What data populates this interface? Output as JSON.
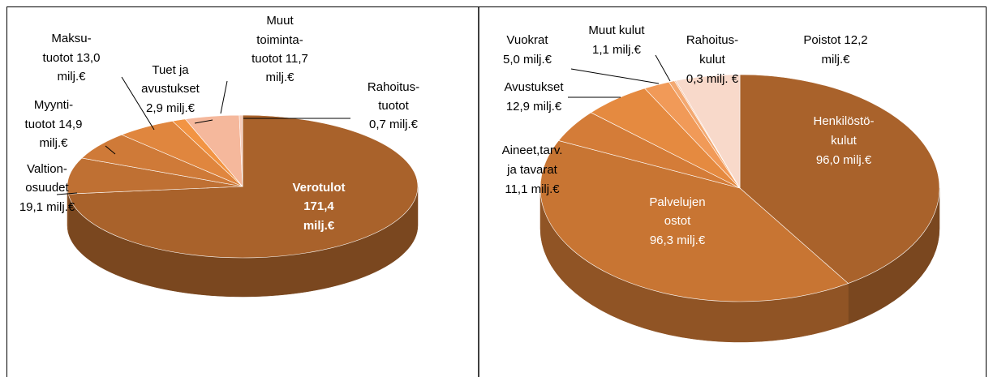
{
  "chart_data": [
    {
      "type": "pie",
      "values": [
        171.4,
        19.1,
        14.9,
        13.0,
        2.9,
        11.7,
        0.7
      ],
      "value_labels": [
        [
          "Verotulot",
          "171,4",
          "milj.€"
        ],
        [
          "Valtion-",
          "osuudet",
          "19,1 milj.€"
        ],
        [
          "Myynti-",
          "tuotot 14,9",
          "milj.€"
        ],
        [
          "Maksu-",
          "tuotot 13,0",
          "milj.€"
        ],
        [
          "Tuet ja",
          "avustukset",
          "2,9 milj.€"
        ],
        [
          "Muut",
          "toiminta-",
          "tuotot 11,7",
          "milj.€"
        ],
        [
          "Rahoitus-",
          "tuotot",
          "0,7 milj.€"
        ]
      ],
      "colors": [
        "#a9622b",
        "#bf7033",
        "#cf7a38",
        "#e0863e",
        "#f29443",
        "#f5b89c",
        "#f7cbb8"
      ]
    },
    {
      "type": "pie",
      "values": [
        96.0,
        96.3,
        11.1,
        12.9,
        5.0,
        1.1,
        0.3,
        12.2
      ],
      "value_labels": [
        [
          "Henkilöstö-",
          "kulut",
          "96,0 milj.€"
        ],
        [
          "Palvelujen",
          "ostot",
          "96,3 milj.€"
        ],
        [
          "Aineet,tarv.",
          "ja tavarat",
          "11,1 milj.€"
        ],
        [
          "Avustukset",
          "12,9 milj.€"
        ],
        [
          "Vuokrat",
          "5,0 milj.€"
        ],
        [
          "Muut kulut",
          "1,1 milj.€"
        ],
        [
          "Rahoitus-",
          "kulut",
          "0,3 milj. €"
        ],
        [
          "Poistot 12,2",
          "milj.€"
        ]
      ],
      "colors": [
        "#a9622b",
        "#c87533",
        "#d47c38",
        "#e58a40",
        "#f19a58",
        "#f3a870",
        "#f5c4a6",
        "#f8d9ca"
      ]
    }
  ]
}
